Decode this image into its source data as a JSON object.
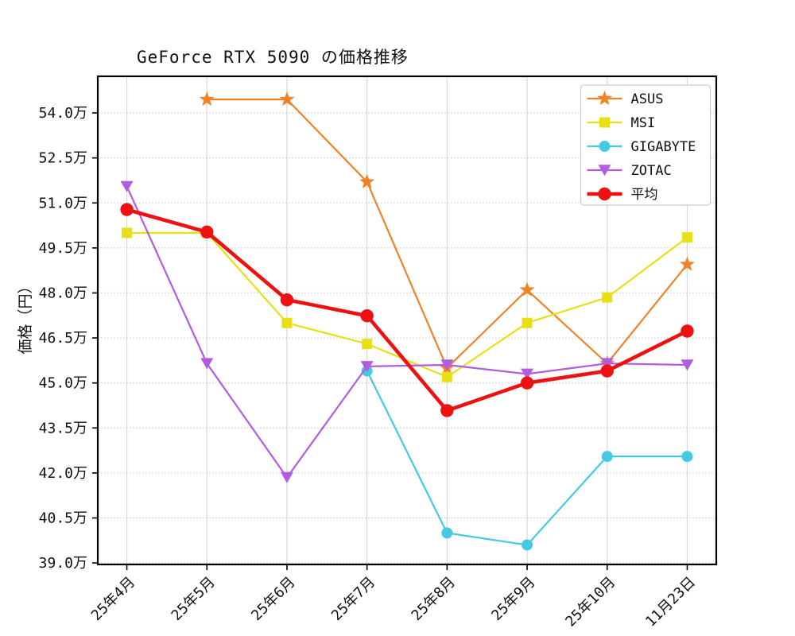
{
  "chart_data": {
    "type": "line",
    "title": "GeForce RTX 5090 の価格推移",
    "xlabel": "",
    "ylabel": "価格（円）",
    "y_unit": "万",
    "categories": [
      "25年4月",
      "25年5月",
      "25年6月",
      "25年7月",
      "25年8月",
      "25年9月",
      "25年10月",
      "11月23日"
    ],
    "y_ticks": [
      "39.0万",
      "40.5万",
      "42.0万",
      "43.5万",
      "45.0万",
      "46.5万",
      "48.0万",
      "49.5万",
      "51.0万",
      "52.5万",
      "54.0万"
    ],
    "y_tick_values": [
      39.0,
      40.5,
      42.0,
      43.5,
      45.0,
      46.5,
      48.0,
      49.5,
      51.0,
      52.5,
      54.0
    ],
    "ylim": [
      38.95,
      55.22
    ],
    "grid": true,
    "legend_position": "upper-right",
    "series": [
      {
        "name": "ASUS",
        "color": "#f08228",
        "marker": "star",
        "markersize": 9,
        "linewidth": 2.2,
        "values": [
          null,
          54.45,
          54.45,
          51.7,
          45.5,
          48.1,
          45.65,
          48.95
        ]
      },
      {
        "name": "MSI",
        "color": "#e8e015",
        "marker": "square",
        "markersize": 6.5,
        "linewidth": 2.2,
        "values": [
          50.0,
          50.0,
          47.0,
          46.3,
          45.2,
          47.0,
          47.85,
          49.85
        ]
      },
      {
        "name": "GIGABYTE",
        "color": "#44cbe2",
        "marker": "circle",
        "markersize": 7,
        "linewidth": 2.2,
        "values": [
          null,
          null,
          null,
          45.4,
          40.0,
          39.6,
          42.55,
          42.55
        ]
      },
      {
        "name": "ZOTAC",
        "color": "#b25ce0",
        "marker": "triangle-down",
        "markersize": 8,
        "linewidth": 2.2,
        "values": [
          51.55,
          45.65,
          41.85,
          45.55,
          45.6,
          45.3,
          45.65,
          45.6
        ]
      },
      {
        "name": "平均",
        "color": "#ed1111",
        "marker": "circle",
        "markersize": 8.2,
        "linewidth": 4.6,
        "values": [
          50.78,
          50.03,
          47.77,
          47.24,
          44.08,
          45.0,
          45.4,
          46.73
        ]
      }
    ],
    "style": {
      "spine_color": "#000000",
      "grid_x_color": "#d9d9d9",
      "grid_y_color": "#c9c9c9",
      "legend_border_color": "#cccccc",
      "background": "#ffffff"
    }
  }
}
